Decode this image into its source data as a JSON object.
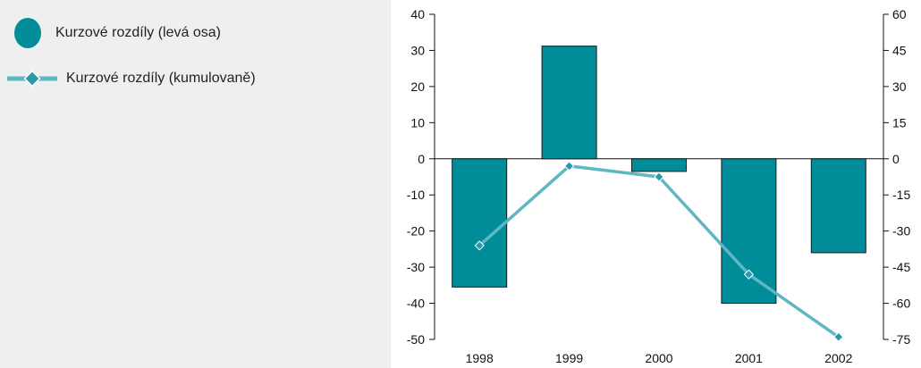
{
  "legend": {
    "bar_label": "Kurzové rozdíly (levá osa)",
    "line_label": "Kurzové rozdíly (kumulovaně)"
  },
  "colors": {
    "bar": "#008c99",
    "bar_stroke": "#1a1a1a",
    "line": "#5fb7c3",
    "marker": "#2a9aa6",
    "panel": "#eef0ef"
  },
  "chart_data": {
    "type": "bar",
    "categories": [
      "1998",
      "1999",
      "2000",
      "2001",
      "2002"
    ],
    "series": [
      {
        "type": "bar",
        "axis": "left",
        "values": [
          -35.5,
          31.2,
          -3.5,
          -40,
          -26
        ]
      },
      {
        "type": "line",
        "axis": "right",
        "values": [
          -36,
          -3,
          -7.5,
          -48,
          -74
        ]
      }
    ],
    "left_axis": {
      "ylim": [
        -50,
        40
      ],
      "ticks": [
        40,
        30,
        20,
        10,
        0,
        -10,
        -20,
        -30,
        -40,
        -50
      ]
    },
    "right_axis": {
      "ylim": [
        -75,
        60
      ],
      "ticks": [
        60,
        45,
        30,
        15,
        0,
        -15,
        -30,
        -45,
        -60,
        -75
      ]
    },
    "legend_position": "top-left, outside plot",
    "grid": false
  }
}
